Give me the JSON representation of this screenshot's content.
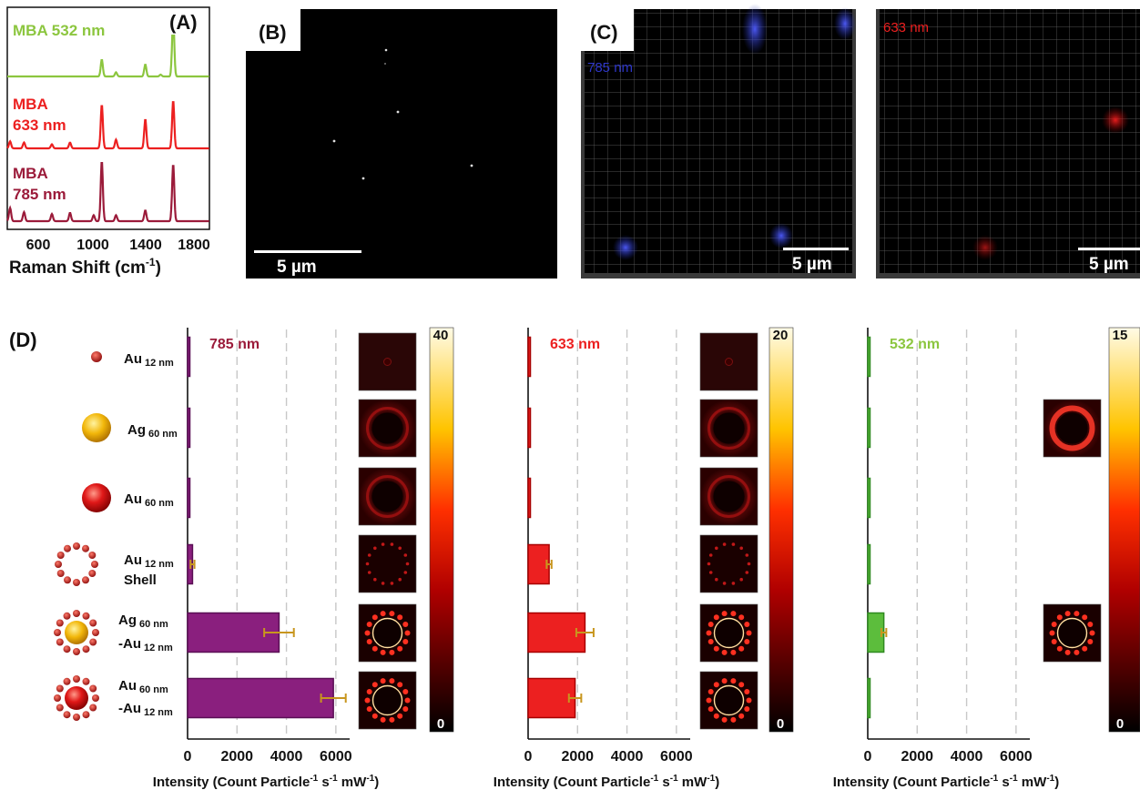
{
  "panel_labels": {
    "a": "(A)",
    "b": "(B)",
    "c": "(C)",
    "d": "(D)"
  },
  "colors": {
    "green": "#8cc63f",
    "red": "#ec2020",
    "maroon": "#9b1b3a",
    "purple": "#8a1f7e",
    "gold": "#d4a23a",
    "blue": "#2d36c8"
  },
  "panel_a": {
    "spectra": [
      {
        "name": "MBA 532 nm",
        "label_lines": [
          "MBA 532 nm"
        ],
        "color": "#8cc63f"
      },
      {
        "name": "MBA 633 nm",
        "label_lines": [
          "MBA",
          "633 nm"
        ],
        "color": "#ec2020"
      },
      {
        "name": "MBA 785 nm",
        "label_lines": [
          "MBA",
          "785 nm"
        ],
        "color": "#9b1b3a"
      }
    ],
    "x_ticks": [
      "600",
      "1000",
      "1400",
      "1800"
    ],
    "xlabel": "Raman Shift (cm",
    "xlabel_sup": "-1",
    "xlabel_end": ")"
  },
  "panel_b": {
    "scale_label": "5 µm"
  },
  "panel_c": {
    "left_label": "785 nm",
    "left_scale": "5 µm",
    "right_label": "633 nm",
    "right_scale": "5 µm"
  },
  "particles": [
    {
      "main": "Au",
      "sub": "12 nm",
      "main2": "",
      "sub2": "",
      "extra": ""
    },
    {
      "main": "Ag",
      "sub": "60 nm",
      "main2": "",
      "sub2": "",
      "extra": ""
    },
    {
      "main": "Au",
      "sub": "60 nm",
      "main2": "",
      "sub2": "",
      "extra": ""
    },
    {
      "main": "Au",
      "sub": "12 nm",
      "main2": "",
      "sub2": "",
      "extra": "Shell"
    },
    {
      "main": "Ag",
      "sub": "60 nm",
      "main2": "-Au",
      "sub2": "12 nm",
      "extra": ""
    },
    {
      "main": "Au",
      "sub": "60 nm",
      "main2": "-Au",
      "sub2": "12 nm",
      "extra": ""
    }
  ],
  "chart_data": [
    {
      "type": "bar",
      "orientation": "horizontal",
      "title": "785 nm",
      "categories": [
        "Au 12 nm",
        "Ag 60 nm",
        "Au 60 nm",
        "Au 12 nm Shell",
        "Ag 60 nm -Au 12 nm",
        "Au 60 nm -Au 12 nm"
      ],
      "values": [
        25,
        25,
        25,
        200,
        3700,
        5900
      ],
      "errors": [
        0,
        0,
        0,
        80,
        600,
        500
      ],
      "xlim": [
        0,
        7000
      ],
      "x_ticks": [
        0,
        2000,
        4000,
        6000
      ],
      "xlabel": "Intensity (Count Particle",
      "color": "#8a1f7e",
      "colorbar_max": "40",
      "colorbar_min": "0"
    },
    {
      "type": "bar",
      "orientation": "horizontal",
      "title": "633 nm",
      "categories": [
        "Au 12 nm",
        "Ag 60 nm",
        "Au 60 nm",
        "Au 12 nm Shell",
        "Ag 60 nm -Au 12 nm",
        "Au 60 nm -Au 12 nm"
      ],
      "values": [
        25,
        25,
        25,
        850,
        2300,
        1900
      ],
      "errors": [
        0,
        0,
        0,
        100,
        350,
        250
      ],
      "xlim": [
        0,
        7000
      ],
      "x_ticks": [
        0,
        2000,
        4000,
        6000
      ],
      "xlabel": "Intensity (Count Particle",
      "color": "#ec2020",
      "colorbar_max": "20",
      "colorbar_min": "0"
    },
    {
      "type": "bar",
      "orientation": "horizontal",
      "title": "532 nm",
      "categories": [
        "Au 12 nm",
        "Ag 60 nm",
        "Au 60 nm",
        "Au 12 nm Shell",
        "Ag 60 nm -Au 12 nm",
        "Au 60 nm -Au 12 nm"
      ],
      "values": [
        25,
        25,
        25,
        25,
        650,
        25
      ],
      "errors": [
        0,
        0,
        0,
        0,
        100,
        0
      ],
      "xlim": [
        0,
        7000
      ],
      "x_ticks": [
        0,
        2000,
        4000,
        6000
      ],
      "xlabel": "Intensity (Count Particle",
      "color": "#5cbd3c",
      "colorbar_max": "15",
      "colorbar_min": "0"
    }
  ]
}
